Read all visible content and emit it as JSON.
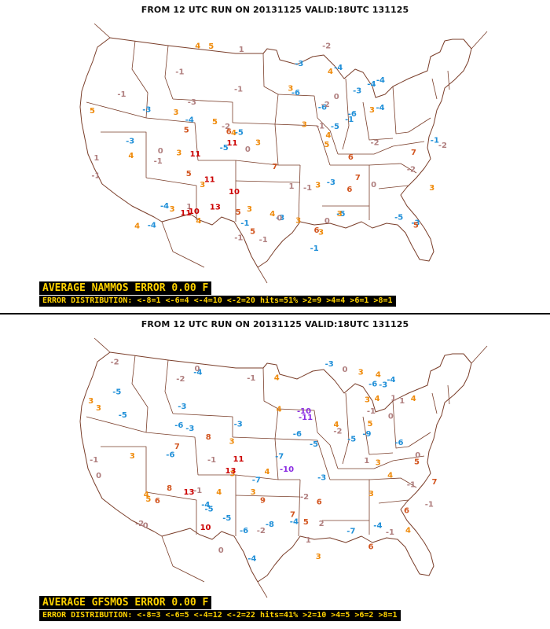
{
  "panels": [
    {
      "id": "nammos",
      "run_title": "FROM 12 UTC RUN ON 20131125 VALID:18UTC 131125",
      "average_error": "AVERAGE NAMMOS ERROR 0.00 F",
      "distribution": "ERROR DISTRIBUTION: <-8=1 <-6=4 <-4=10 <-2=20 hits=51% >2=9 >4=4 >6=1 >8=1",
      "sample_values": [
        [
          -6,
          -1,
          -3,
          -4,
          -5,
          -6,
          -4,
          -6,
          -4,
          -5,
          -3,
          -1,
          -4,
          -3,
          -5,
          -4,
          -3,
          -5,
          -1,
          -3,
          -1,
          -4,
          -3,
          -4,
          -3,
          -5
        ],
        [
          0,
          -2,
          -1,
          1,
          -1,
          -2,
          -3,
          -1,
          -2,
          0,
          -1,
          1,
          0,
          -2,
          -1,
          0,
          -2,
          -1,
          -1,
          0,
          1,
          -2,
          -1,
          0,
          1,
          -1
        ],
        [
          3,
          4,
          3,
          4,
          5,
          3,
          3,
          4,
          3,
          3,
          5,
          3,
          4,
          3,
          4,
          3,
          5,
          3,
          4,
          3,
          4,
          3,
          3,
          4,
          5,
          3
        ],
        [
          5,
          6,
          7,
          5,
          6,
          5,
          7,
          6,
          5,
          6,
          7,
          5
        ],
        [
          11,
          10,
          11,
          11,
          13,
          11,
          10
        ]
      ]
    },
    {
      "id": "gfsmos",
      "run_title": "FROM 12 UTC RUN ON 20131125 VALID:18UTC 131125",
      "average_error": "AVERAGE GFSMOS ERROR 0.00 F",
      "distribution": "ERROR DISTRIBUTION: <-8=3 <-6=5 <-4=12 <-2=22 hits=41% >2=10 >4=5 >6=2 >8=1",
      "sample_values": [
        [
          -6,
          -4,
          -5,
          -6,
          -3,
          -5,
          -7,
          -6,
          -4,
          -3,
          -6,
          -5,
          -4,
          -7,
          -3,
          -5,
          -6,
          -4,
          -3,
          -5,
          -6,
          -4,
          -3,
          -5,
          -4,
          -3,
          -7,
          -8,
          -9
        ],
        [
          0,
          -2,
          -1,
          1,
          0,
          -1,
          -2,
          1,
          0,
          -1,
          2,
          -2,
          -1,
          0,
          -1,
          1,
          -2,
          0,
          -1,
          -2,
          0,
          1,
          -1,
          0,
          -1,
          -2
        ],
        [
          3,
          4,
          3,
          4,
          3,
          4,
          5,
          3,
          4,
          3,
          4,
          3,
          3,
          4,
          5,
          4,
          3,
          4,
          3,
          4,
          3,
          4,
          3,
          4
        ],
        [
          6,
          7,
          8,
          9,
          5,
          6,
          7,
          8,
          6,
          5,
          7,
          6
        ],
        [
          13,
          10,
          11,
          13
        ]
      ],
      "purple_values": [
        -10,
        -11,
        -10
      ]
    }
  ],
  "palette": {
    "neg_strong": "#1f8fd8",
    "neutral": "#b07f7f",
    "pos_mild": "#ef8a0a",
    "pos_med": "#d2541e",
    "pos_strong": "#cc0000",
    "purple": "#8a2be2",
    "boundary": "#7a3e2a",
    "box_bg": "#000000",
    "box_text": "#ffd200"
  }
}
